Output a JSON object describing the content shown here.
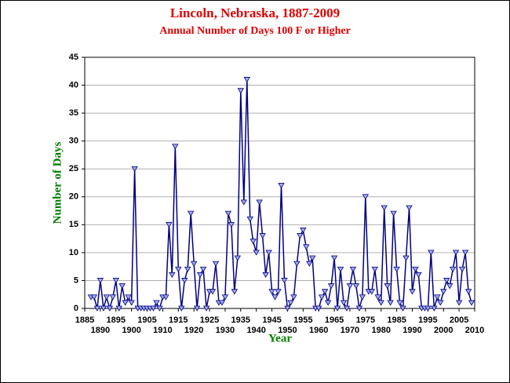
{
  "chart_data": {
    "type": "line",
    "title": "Lincoln, Nebraska, 1887-2009",
    "subtitle": "Annual Number of Days 100 F or Higher",
    "ylabel": "Number of Days",
    "xlabel": "Year",
    "color": "#000080",
    "marker_color": "#9fa8ec",
    "grid": true,
    "xlim": [
      1885,
      2010
    ],
    "xticks": [
      1885,
      1890,
      1895,
      1900,
      1905,
      1910,
      1915,
      1920,
      1925,
      1930,
      1935,
      1940,
      1945,
      1950,
      1955,
      1960,
      1965,
      1970,
      1975,
      1980,
      1985,
      1990,
      1995,
      2000,
      2005,
      2010
    ],
    "ylim": [
      0,
      45
    ],
    "yticks": [
      0,
      5,
      10,
      15,
      20,
      25,
      30,
      35,
      40,
      45
    ],
    "x": [
      1887,
      1888,
      1889,
      1890,
      1891,
      1892,
      1893,
      1894,
      1895,
      1896,
      1897,
      1898,
      1899,
      1900,
      1901,
      1902,
      1903,
      1904,
      1905,
      1906,
      1907,
      1908,
      1909,
      1910,
      1911,
      1912,
      1913,
      1914,
      1915,
      1916,
      1917,
      1918,
      1919,
      1920,
      1921,
      1922,
      1923,
      1924,
      1925,
      1926,
      1927,
      1928,
      1929,
      1930,
      1931,
      1932,
      1933,
      1934,
      1935,
      1936,
      1937,
      1938,
      1939,
      1940,
      1941,
      1942,
      1943,
      1944,
      1945,
      1946,
      1947,
      1948,
      1949,
      1950,
      1951,
      1952,
      1953,
      1954,
      1955,
      1956,
      1957,
      1958,
      1959,
      1960,
      1961,
      1962,
      1963,
      1964,
      1965,
      1966,
      1967,
      1968,
      1969,
      1970,
      1971,
      1972,
      1973,
      1974,
      1975,
      1976,
      1977,
      1978,
      1979,
      1980,
      1981,
      1982,
      1983,
      1984,
      1985,
      1986,
      1987,
      1988,
      1989,
      1990,
      1991,
      1992,
      1993,
      1994,
      1995,
      1996,
      1997,
      1998,
      1999,
      2000,
      2001,
      2002,
      2003,
      2004,
      2005,
      2006,
      2007,
      2008,
      2009
    ],
    "values": [
      2,
      2,
      0,
      5,
      0,
      2,
      0,
      2,
      5,
      0,
      4,
      1,
      2,
      1,
      25,
      0,
      0,
      0,
      0,
      0,
      0,
      1,
      0,
      2,
      2,
      15,
      6,
      29,
      7,
      0,
      5,
      7,
      17,
      8,
      0,
      6,
      7,
      0,
      3,
      3,
      8,
      1,
      1,
      2,
      17,
      15,
      3,
      9,
      39,
      19,
      41,
      16,
      12,
      10,
      19,
      13,
      6,
      10,
      3,
      2,
      3,
      22,
      5,
      0,
      1,
      2,
      8,
      13,
      14,
      11,
      8,
      9,
      0,
      0,
      2,
      3,
      1,
      4,
      9,
      0,
      7,
      1,
      0,
      4,
      7,
      4,
      0,
      2,
      20,
      3,
      3,
      7,
      2,
      1,
      18,
      4,
      1,
      17,
      7,
      1,
      0,
      9,
      18,
      3,
      7,
      6,
      0,
      0,
      0,
      10,
      0,
      2,
      1,
      3,
      5,
      4,
      7,
      10,
      1,
      7,
      10,
      3,
      1
    ]
  }
}
